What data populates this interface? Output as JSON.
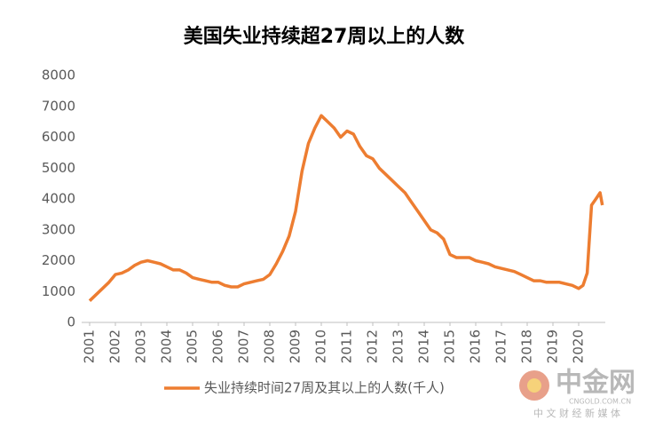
{
  "chart_data": {
    "type": "line",
    "title": "美国失业持续超27周以上的人数",
    "x": [
      2001,
      2001.25,
      2001.5,
      2001.75,
      2002,
      2002.25,
      2002.5,
      2002.75,
      2003,
      2003.25,
      2003.5,
      2003.75,
      2004,
      2004.25,
      2004.5,
      2004.75,
      2005,
      2005.25,
      2005.5,
      2005.75,
      2006,
      2006.25,
      2006.5,
      2006.75,
      2007,
      2007.25,
      2007.5,
      2007.75,
      2008,
      2008.25,
      2008.5,
      2008.75,
      2009,
      2009.25,
      2009.5,
      2009.75,
      2010,
      2010.25,
      2010.5,
      2010.75,
      2011,
      2011.25,
      2011.5,
      2011.75,
      2012,
      2012.25,
      2012.5,
      2012.75,
      2013,
      2013.25,
      2013.5,
      2013.75,
      2014,
      2014.25,
      2014.5,
      2014.75,
      2015,
      2015.25,
      2015.5,
      2015.75,
      2016,
      2016.25,
      2016.5,
      2016.75,
      2017,
      2017.25,
      2017.5,
      2017.75,
      2018,
      2018.25,
      2018.5,
      2018.75,
      2019,
      2019.25,
      2019.5,
      2019.75,
      2020,
      2020.17,
      2020.33,
      2020.5,
      2020.67,
      2020.83,
      2020.92
    ],
    "series": [
      {
        "name": "失业持续时间27周及其以上的人数(千人)",
        "color": "#ed7d31",
        "values": [
          700,
          900,
          1100,
          1300,
          1550,
          1600,
          1700,
          1850,
          1950,
          2000,
          1950,
          1900,
          1800,
          1700,
          1700,
          1600,
          1450,
          1400,
          1350,
          1300,
          1300,
          1200,
          1150,
          1150,
          1250,
          1300,
          1350,
          1400,
          1550,
          1900,
          2300,
          2800,
          3600,
          4900,
          5800,
          6300,
          6700,
          6500,
          6300,
          6000,
          6200,
          6100,
          5700,
          5400,
          5300,
          5000,
          4800,
          4600,
          4400,
          4200,
          3900,
          3600,
          3300,
          3000,
          2900,
          2700,
          2200,
          2100,
          2100,
          2100,
          2000,
          1950,
          1900,
          1800,
          1750,
          1700,
          1650,
          1550,
          1450,
          1350,
          1350,
          1300,
          1300,
          1300,
          1250,
          1200,
          1100,
          1200,
          1600,
          3800,
          4000,
          4200,
          3800
        ]
      }
    ],
    "xlim": [
      2001,
      2021
    ],
    "xticks": [
      2001,
      2002,
      2003,
      2004,
      2005,
      2006,
      2007,
      2008,
      2009,
      2010,
      2011,
      2012,
      2013,
      2014,
      2015,
      2016,
      2017,
      2018,
      2019,
      2020
    ],
    "ylim": [
      0,
      8000
    ],
    "yticks": [
      0,
      1000,
      2000,
      3000,
      4000,
      5000,
      6000,
      7000,
      8000
    ],
    "legend": "bottom",
    "watermark": {
      "brand": "中金网",
      "domain": "CNGOLD.COM.CN",
      "tagline": "中 文 财 经 新 媒 体"
    }
  }
}
